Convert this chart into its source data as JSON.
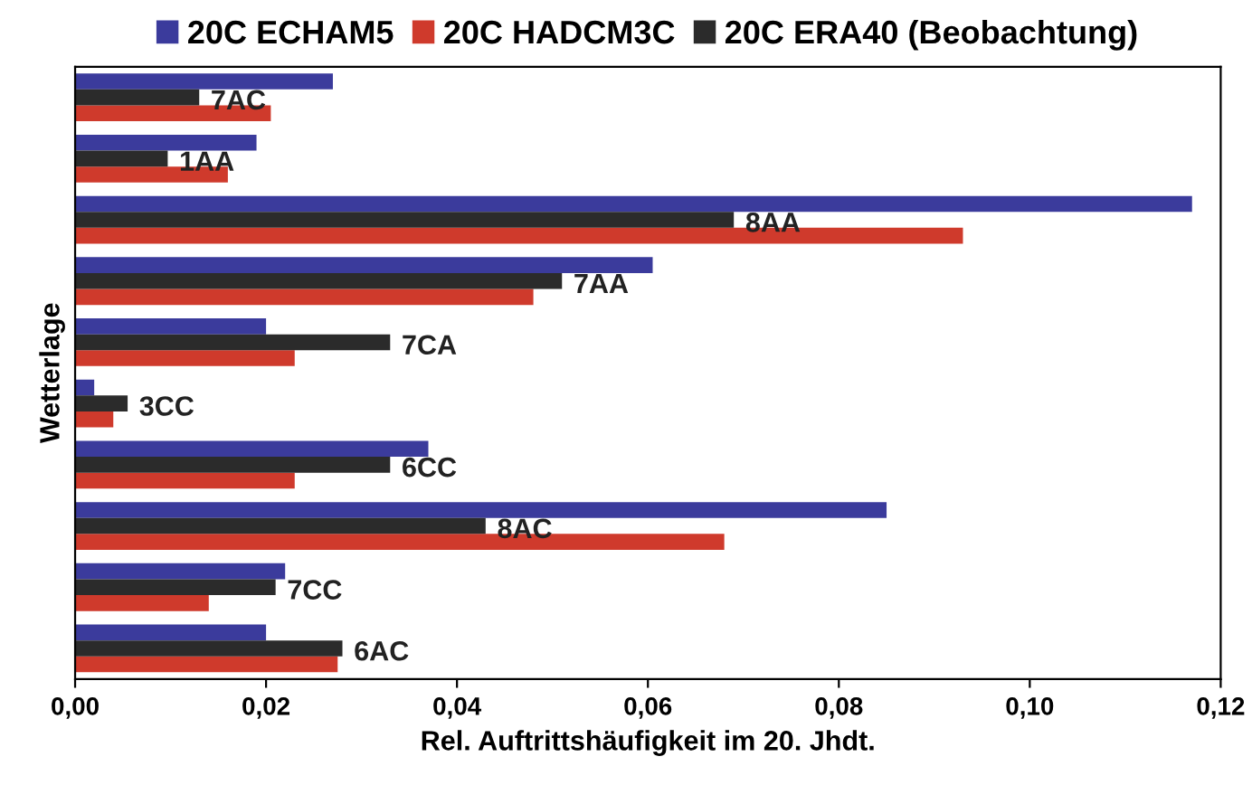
{
  "chart_data": {
    "type": "bar",
    "orientation": "horizontal",
    "xlabel": "Rel. Auftrittshäufigkeit im 20. Jhdt.",
    "ylabel": "Wetterlage",
    "categories": [
      "7AC",
      "1AA",
      "8AA",
      "7AA",
      "7CA",
      "3CC",
      "6CC",
      "8AC",
      "7CC",
      "6AC"
    ],
    "series": [
      {
        "name": "20C ECHAM5",
        "color": "#3b3b9c",
        "values": [
          0.027,
          0.019,
          0.117,
          0.0605,
          0.02,
          0.002,
          0.037,
          0.085,
          0.022,
          0.02
        ]
      },
      {
        "name": "20C HADCM3C",
        "color": "#cf3a2c",
        "values": [
          0.0205,
          0.016,
          0.093,
          0.048,
          0.023,
          0.004,
          0.023,
          0.068,
          0.014,
          0.0275
        ]
      },
      {
        "name": "20C ERA40 (Beobachtung)",
        "color": "#2b2b2b",
        "values": [
          0.013,
          0.0097,
          0.069,
          0.051,
          0.033,
          0.0055,
          0.033,
          0.043,
          0.021,
          0.028
        ]
      }
    ],
    "xlim": [
      0,
      0.12
    ],
    "xticks": [
      {
        "value": 0,
        "label": "0,00"
      },
      {
        "value": 0.02,
        "label": "0,02"
      },
      {
        "value": 0.04,
        "label": "0,04"
      },
      {
        "value": 0.06,
        "label": "0,06"
      },
      {
        "value": 0.08,
        "label": "0,08"
      },
      {
        "value": 0.1,
        "label": "0,10"
      },
      {
        "value": 0.12,
        "label": "0,12"
      }
    ],
    "tick_labels": "x",
    "legend": "top",
    "grid": false
  }
}
